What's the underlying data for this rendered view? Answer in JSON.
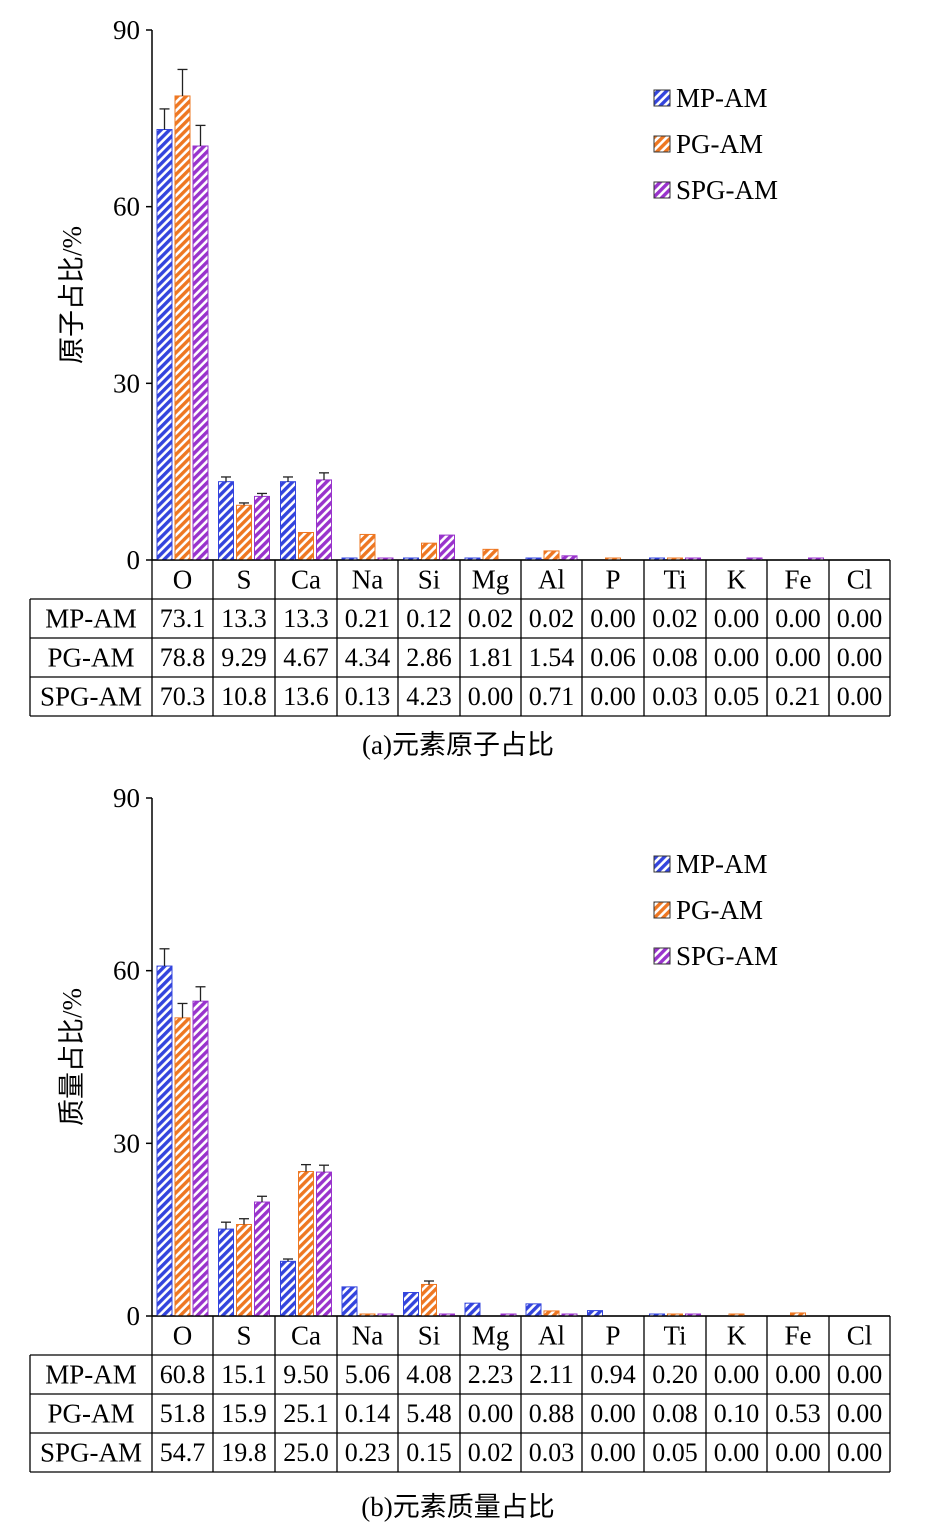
{
  "chart_data": [
    {
      "type": "bar",
      "ylabel": "原子占比/%",
      "ylim": [
        0,
        90
      ],
      "yticks": [
        0,
        30,
        60,
        90
      ],
      "categories": [
        "O",
        "S",
        "Ca",
        "Na",
        "Si",
        "Mg",
        "Al",
        "P",
        "Ti",
        "K",
        "Fe",
        "Cl"
      ],
      "series": [
        {
          "name": "MP-AM",
          "color": "#3344dd",
          "values": [
            "73.1",
            "13.3",
            "13.3",
            "0.21",
            "0.12",
            "0.02",
            "0.02",
            "0.00",
            "0.02",
            "0.00",
            "0.00",
            "0.00"
          ],
          "errors": [
            3.5,
            0.8,
            0.8,
            0,
            0,
            0,
            0,
            0,
            0,
            0,
            0,
            0
          ]
        },
        {
          "name": "PG-AM",
          "color": "#ee7722",
          "values": [
            "78.8",
            "9.29",
            "4.67",
            "4.34",
            "2.86",
            "1.81",
            "1.54",
            "0.06",
            "0.08",
            "0.00",
            "0.00",
            "0.00"
          ],
          "errors": [
            4.5,
            0.4,
            0,
            0,
            0,
            0,
            0,
            0,
            0,
            0,
            0,
            0
          ]
        },
        {
          "name": "SPG-AM",
          "color": "#9933cc",
          "values": [
            "70.3",
            "10.8",
            "13.6",
            "0.13",
            "4.23",
            "0.00",
            "0.71",
            "0.00",
            "0.03",
            "0.05",
            "0.21",
            "0.00"
          ],
          "errors": [
            3.5,
            0.5,
            1.2,
            0,
            0,
            0,
            0,
            0,
            0,
            0,
            0,
            0
          ]
        }
      ],
      "legend_position": "top-right",
      "caption": "(a)元素原子占比"
    },
    {
      "type": "bar",
      "ylabel": "质量占比/%",
      "ylim": [
        0,
        90
      ],
      "yticks": [
        0,
        30,
        60,
        90
      ],
      "categories": [
        "O",
        "S",
        "Ca",
        "Na",
        "Si",
        "Mg",
        "Al",
        "P",
        "Ti",
        "K",
        "Fe",
        "Cl"
      ],
      "series": [
        {
          "name": "MP-AM",
          "color": "#3344dd",
          "values": [
            "60.8",
            "15.1",
            "9.50",
            "5.06",
            "4.08",
            "2.23",
            "2.11",
            "0.94",
            "0.20",
            "0.00",
            "0.00",
            "0.00"
          ],
          "errors": [
            3.0,
            1.2,
            0.4,
            0,
            0,
            0,
            0,
            0,
            0,
            0,
            0,
            0
          ]
        },
        {
          "name": "PG-AM",
          "color": "#ee7722",
          "values": [
            "51.8",
            "15.9",
            "25.1",
            "0.14",
            "5.48",
            "0.00",
            "0.88",
            "0.00",
            "0.08",
            "0.10",
            "0.53",
            "0.00"
          ],
          "errors": [
            2.5,
            1.0,
            1.2,
            0,
            0.6,
            0,
            0,
            0,
            0,
            0,
            0,
            0
          ]
        },
        {
          "name": "SPG-AM",
          "color": "#9933cc",
          "values": [
            "54.7",
            "19.8",
            "25.0",
            "0.23",
            "0.15",
            "0.02",
            "0.03",
            "0.00",
            "0.05",
            "0.00",
            "0.00",
            "0.00"
          ],
          "errors": [
            2.5,
            1.0,
            1.2,
            0,
            0,
            0,
            0,
            0,
            0,
            0,
            0,
            0
          ]
        }
      ],
      "legend_position": "top-right",
      "caption": "(b)元素质量占比"
    }
  ]
}
